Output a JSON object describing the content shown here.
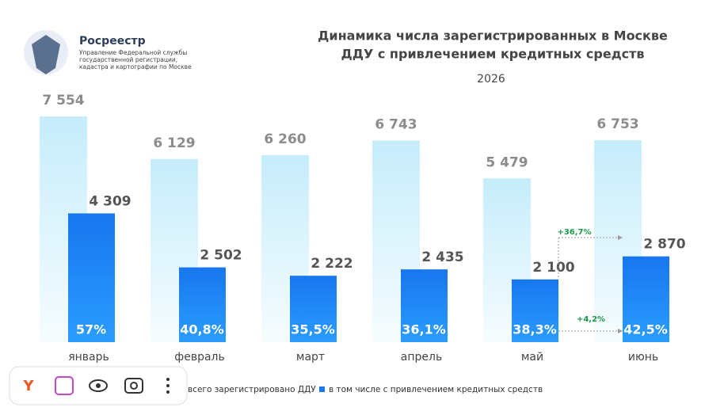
{
  "logo": {
    "name": "Росреестр",
    "subtitle": [
      "Управление Федеральной службы",
      "государственной регистрации,",
      "кадастра и картографии по Москве"
    ]
  },
  "chart_data": {
    "type": "bar",
    "title": [
      "Динамика числа зарегистрированных в Москве",
      "ДДУ с привлечением кредитных средств"
    ],
    "subtitle": "2026",
    "categories": [
      "январь",
      "февраль",
      "март",
      "апрель",
      "май",
      "июнь"
    ],
    "series": [
      {
        "name": "всего зарегистрировано ДДУ",
        "color": "#c6edfb",
        "values": [
          7554,
          6129,
          6260,
          6743,
          5479,
          6753
        ],
        "value_labels": [
          "7 554",
          "6 129",
          "6 260",
          "6 743",
          "5 479",
          "6 753"
        ]
      },
      {
        "name": "в том числе с привлечением кредитных средств",
        "color": "#1877ef",
        "values": [
          4309,
          2502,
          2222,
          2435,
          2100,
          2870
        ],
        "value_labels": [
          "4 309",
          "2 502",
          "2 222",
          "2 435",
          "2 100",
          "2 870"
        ]
      }
    ],
    "shares": {
      "values": [
        57,
        40.8,
        35.5,
        36.1,
        38.3,
        42.5
      ],
      "value_labels": [
        "57%",
        "40,8%",
        "35,5%",
        "36,1%",
        "38,3%",
        "42,5%"
      ]
    },
    "annotations": [
      {
        "text": "+36,7%",
        "value": 36.7
      },
      {
        "text": "+4,2%",
        "value": 4.2
      }
    ]
  }
}
